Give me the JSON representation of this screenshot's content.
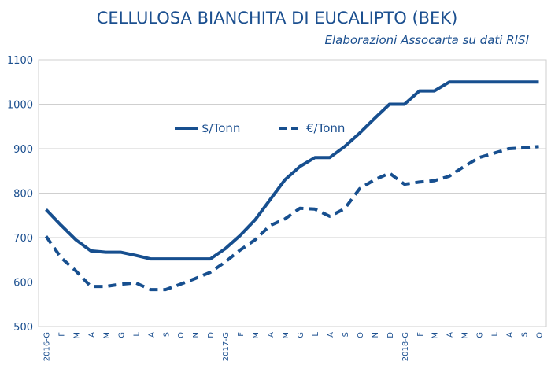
{
  "colors": {
    "series": "#174f8f",
    "grid": "#cfcfcf",
    "text": "#1b4f8f"
  },
  "chart_data": {
    "type": "line",
    "title": "CELLULOSA BIANCHITA DI EUCALIPTO (BEK)",
    "subtitle": "Elaborazioni Assocarta su dati RISI",
    "xlabel": "",
    "ylabel": "",
    "ylim": [
      500,
      1100
    ],
    "yticks": [
      "500",
      "600",
      "700",
      "800",
      "900",
      "1000",
      "1100"
    ],
    "grid": true,
    "legend_position": "top-center",
    "categories": [
      "2016-G",
      "F",
      "M",
      "A",
      "M",
      "G",
      "L",
      "A",
      "S",
      "O",
      "N",
      "D",
      "2017-G",
      "F",
      "M",
      "A",
      "M",
      "G",
      "L",
      "A",
      "S",
      "O",
      "N",
      "D",
      "2018-G",
      "F",
      "M",
      "A",
      "M",
      "G",
      "L",
      "A",
      "S",
      "O"
    ],
    "series": [
      {
        "name": "$/Tonn",
        "style": "solid",
        "values": [
          763,
          728,
          695,
          670,
          667,
          667,
          660,
          652,
          652,
          652,
          652,
          652,
          675,
          705,
          740,
          785,
          830,
          860,
          880,
          880,
          905,
          935,
          968,
          1000,
          1000,
          1030,
          1030,
          1050,
          1050,
          1050,
          1050,
          1050,
          1050,
          1050
        ]
      },
      {
        "name": "€/Tonn",
        "style": "dashed",
        "values": [
          703,
          655,
          625,
          590,
          590,
          595,
          598,
          583,
          583,
          595,
          608,
          622,
          645,
          672,
          695,
          727,
          742,
          766,
          764,
          748,
          765,
          810,
          830,
          845,
          820,
          825,
          828,
          838,
          860,
          880,
          890,
          900,
          902,
          905
        ]
      }
    ]
  }
}
